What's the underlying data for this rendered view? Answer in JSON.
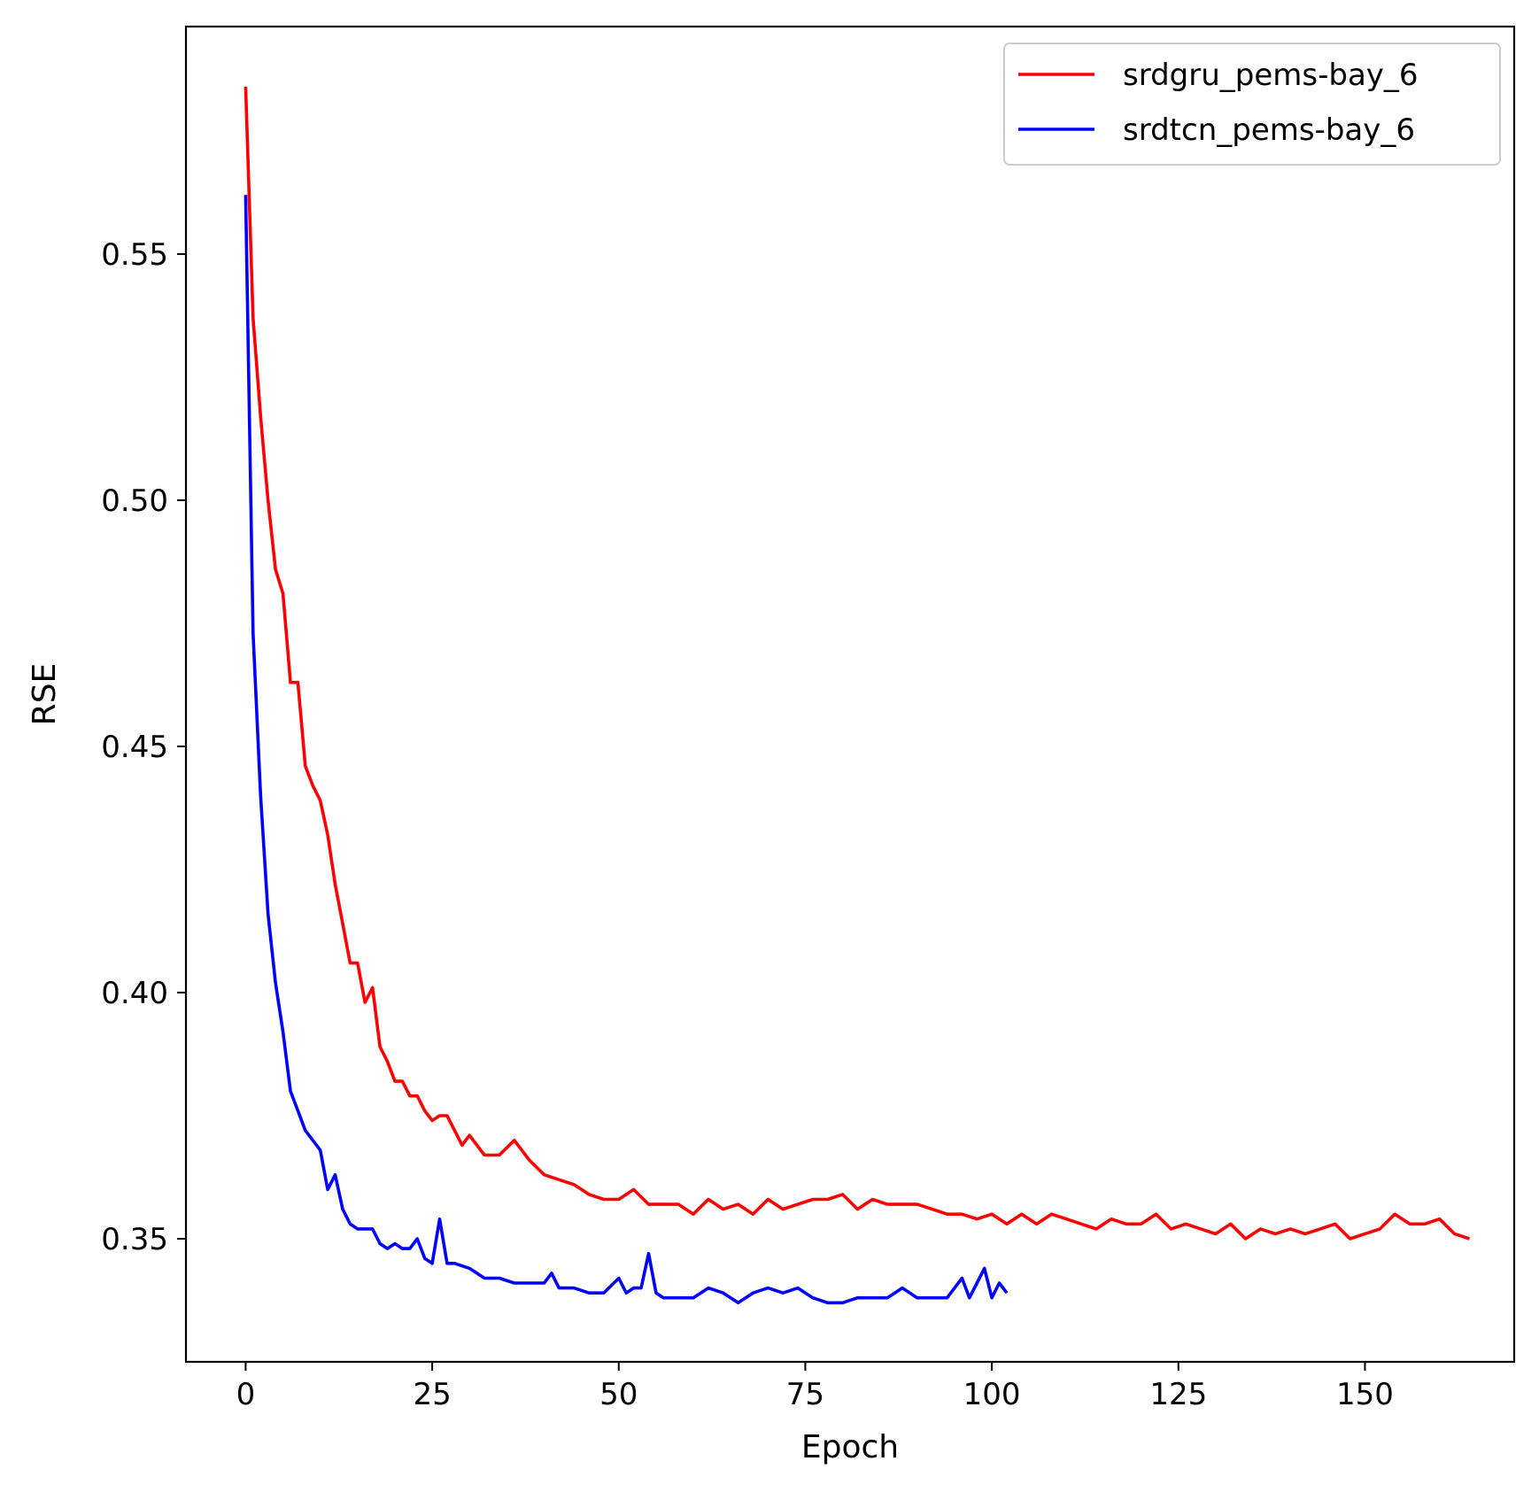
{
  "chart_data": {
    "type": "line",
    "title": "",
    "xlabel": "Epoch",
    "ylabel": "RSE",
    "xlim": [
      -8,
      170
    ],
    "ylim": [
      0.325,
      0.5962
    ],
    "xticks": [
      0,
      25,
      50,
      75,
      100,
      125,
      150
    ],
    "xtick_labels": [
      "0",
      "25",
      "50",
      "75",
      "100",
      "125",
      "150"
    ],
    "yticks": [
      0.35,
      0.4,
      0.45,
      0.5,
      0.55
    ],
    "ytick_labels": [
      "0.35",
      "0.40",
      "0.45",
      "0.50",
      "0.55"
    ],
    "grid": false,
    "legend_position": "top-right",
    "series": [
      {
        "name": "srdgru_pems-bay_6",
        "color": "#ff0000",
        "x": [
          0,
          1,
          2,
          3,
          4,
          5,
          6,
          7,
          8,
          9,
          10,
          11,
          12,
          13,
          14,
          15,
          16,
          17,
          18,
          19,
          20,
          21,
          22,
          23,
          24,
          25,
          26,
          27,
          28,
          29,
          30,
          32,
          34,
          36,
          38,
          40,
          42,
          44,
          46,
          48,
          50,
          52,
          54,
          56,
          58,
          60,
          62,
          64,
          66,
          68,
          70,
          72,
          74,
          76,
          78,
          80,
          82,
          84,
          86,
          88,
          90,
          92,
          94,
          96,
          98,
          100,
          102,
          104,
          106,
          108,
          110,
          112,
          114,
          116,
          118,
          120,
          122,
          124,
          126,
          128,
          130,
          132,
          134,
          136,
          138,
          140,
          142,
          144,
          146,
          148,
          150,
          152,
          154,
          156,
          158,
          160,
          162,
          164
        ],
        "y": [
          0.584,
          0.537,
          0.517,
          0.5,
          0.486,
          0.481,
          0.463,
          0.463,
          0.446,
          0.442,
          0.439,
          0.432,
          0.422,
          0.414,
          0.406,
          0.406,
          0.398,
          0.401,
          0.389,
          0.386,
          0.382,
          0.382,
          0.379,
          0.379,
          0.376,
          0.374,
          0.375,
          0.375,
          0.372,
          0.369,
          0.371,
          0.367,
          0.367,
          0.37,
          0.366,
          0.363,
          0.362,
          0.361,
          0.359,
          0.358,
          0.358,
          0.36,
          0.357,
          0.357,
          0.357,
          0.355,
          0.358,
          0.356,
          0.357,
          0.355,
          0.358,
          0.356,
          0.357,
          0.358,
          0.358,
          0.359,
          0.356,
          0.358,
          0.357,
          0.357,
          0.357,
          0.356,
          0.355,
          0.355,
          0.354,
          0.355,
          0.353,
          0.355,
          0.353,
          0.355,
          0.354,
          0.353,
          0.352,
          0.354,
          0.353,
          0.353,
          0.355,
          0.352,
          0.353,
          0.352,
          0.351,
          0.353,
          0.35,
          0.352,
          0.351,
          0.352,
          0.351,
          0.352,
          0.353,
          0.35,
          0.351,
          0.352,
          0.355,
          0.353,
          0.353,
          0.354,
          0.351,
          0.35
        ]
      },
      {
        "name": "srdtcn_pems-bay_6",
        "color": "#0000ff",
        "x": [
          0,
          1,
          2,
          3,
          4,
          5,
          6,
          7,
          8,
          9,
          10,
          11,
          12,
          13,
          14,
          15,
          16,
          17,
          18,
          19,
          20,
          21,
          22,
          23,
          24,
          25,
          26,
          27,
          28,
          30,
          32,
          34,
          36,
          38,
          40,
          41,
          42,
          44,
          46,
          48,
          50,
          51,
          52,
          53,
          54,
          55,
          56,
          58,
          60,
          62,
          64,
          66,
          68,
          70,
          72,
          74,
          76,
          78,
          80,
          82,
          84,
          86,
          88,
          90,
          92,
          94,
          95,
          96,
          97,
          98,
          99,
          100,
          101,
          102
        ],
        "y": [
          0.562,
          0.473,
          0.44,
          0.416,
          0.402,
          0.392,
          0.38,
          0.376,
          0.372,
          0.37,
          0.368,
          0.36,
          0.363,
          0.356,
          0.353,
          0.352,
          0.352,
          0.352,
          0.349,
          0.348,
          0.349,
          0.348,
          0.348,
          0.35,
          0.346,
          0.345,
          0.354,
          0.345,
          0.345,
          0.344,
          0.342,
          0.342,
          0.341,
          0.341,
          0.341,
          0.343,
          0.34,
          0.34,
          0.339,
          0.339,
          0.342,
          0.339,
          0.34,
          0.34,
          0.347,
          0.339,
          0.338,
          0.338,
          0.338,
          0.34,
          0.339,
          0.337,
          0.339,
          0.34,
          0.339,
          0.34,
          0.338,
          0.337,
          0.337,
          0.338,
          0.338,
          0.338,
          0.34,
          0.338,
          0.338,
          0.338,
          0.34,
          0.342,
          0.338,
          0.341,
          0.344,
          0.338,
          0.341,
          0.339
        ]
      }
    ]
  }
}
